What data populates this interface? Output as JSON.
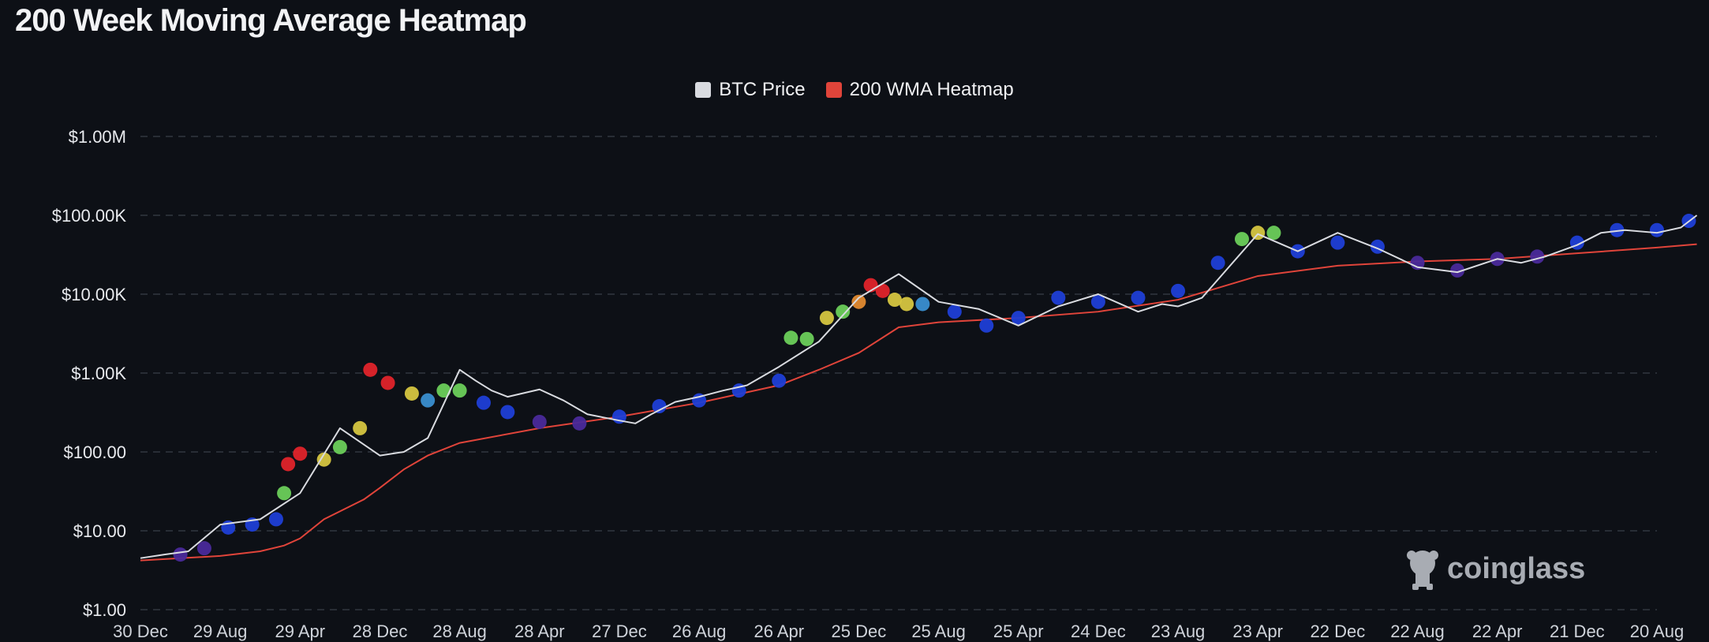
{
  "page": {
    "title": "200 Week Moving Average Heatmap"
  },
  "watermark": {
    "text": "coinglass",
    "icon": "coinglass-logo-icon"
  },
  "colors": {
    "background": "#0d1016",
    "btc_price": "#d9dbe0",
    "wma_line": "#e0443a",
    "legend_wma": "#e0443a",
    "legend_btc": "#d9dbe0",
    "heat_blue": "#1f3fd6",
    "heat_purple": "#4a2a9a",
    "heat_cyan": "#3a8fd0",
    "heat_green": "#6ccf5a",
    "heat_yellow": "#d6c640",
    "heat_orange": "#e08a30",
    "heat_red": "#e0242a"
  },
  "chart_data": {
    "type": "line",
    "title": "200 Week Moving Average Heatmap",
    "y_scale": "log",
    "ylim": [
      1,
      1000000
    ],
    "y_ticks": [
      "$1.00",
      "$10.00",
      "$100.00",
      "$1.00K",
      "$10.00K",
      "$100.00K",
      "$1.00M"
    ],
    "x_ticks": [
      "30 Dec",
      "29 Aug",
      "29 Apr",
      "28 Dec",
      "28 Aug",
      "28 Apr",
      "27 Dec",
      "26 Aug",
      "26 Apr",
      "25 Dec",
      "25 Aug",
      "25 Apr",
      "24 Dec",
      "23 Aug",
      "23 Apr",
      "22 Dec",
      "22 Aug",
      "22 Apr",
      "21 Dec",
      "20 Aug"
    ],
    "grid": true,
    "legend": [
      {
        "name": "BTC Price",
        "color": "#d9dbe0"
      },
      {
        "name": "200 WMA Heatmap",
        "color": "#e0443a"
      }
    ],
    "legend_position": "top-center",
    "series": [
      {
        "name": "BTC Price",
        "x": [
          0,
          0.3,
          0.6,
          1,
          1.5,
          2,
          2.5,
          3,
          3.3,
          3.6,
          4,
          4.2,
          4.4,
          4.6,
          5,
          5.3,
          5.6,
          6,
          6.2,
          6.4,
          6.7,
          7,
          7.3,
          7.6,
          8,
          8.5,
          9,
          9.5,
          10,
          10.5,
          11,
          11.5,
          12,
          12.5,
          12.8,
          13,
          13.3,
          13.6,
          14,
          14.5,
          15,
          15.5,
          16,
          16.5,
          17,
          17.3,
          17.6,
          18,
          18.3,
          18.6,
          19,
          19.3,
          19.5
        ],
        "y": [
          4.5,
          5,
          5.5,
          12,
          14,
          30,
          200,
          90,
          100,
          150,
          1100,
          800,
          600,
          500,
          620,
          450,
          300,
          250,
          230,
          300,
          430,
          500,
          600,
          700,
          1200,
          2500,
          9000,
          18000,
          8000,
          6500,
          4000,
          7000,
          10000,
          6000,
          7500,
          7000,
          9000,
          20000,
          58000,
          35000,
          60000,
          38000,
          22000,
          19000,
          28000,
          25000,
          30000,
          42000,
          60000,
          65000,
          60000,
          70000,
          100000
        ]
      },
      {
        "name": "200 WMA Heatmap",
        "x": [
          0,
          1,
          1.5,
          1.8,
          2,
          2.3,
          2.8,
          3,
          3.3,
          3.6,
          4,
          5,
          6,
          7,
          8,
          8.5,
          9,
          9.5,
          10,
          11,
          12,
          13,
          13.5,
          14,
          15,
          16,
          17,
          18,
          19,
          19.5
        ],
        "y": [
          4.2,
          4.8,
          5.5,
          6.5,
          8,
          14,
          25,
          35,
          60,
          90,
          130,
          200,
          280,
          420,
          700,
          1100,
          1800,
          3800,
          4400,
          5000,
          6000,
          8500,
          12000,
          17000,
          23000,
          26000,
          28000,
          33000,
          39000,
          43000
        ]
      }
    ],
    "heat_points": [
      {
        "x": 0.5,
        "y": 5,
        "band": "purple"
      },
      {
        "x": 0.8,
        "y": 6,
        "band": "purple"
      },
      {
        "x": 1.1,
        "y": 11,
        "band": "blue"
      },
      {
        "x": 1.4,
        "y": 12,
        "band": "blue"
      },
      {
        "x": 1.7,
        "y": 14,
        "band": "blue"
      },
      {
        "x": 1.8,
        "y": 30,
        "band": "green"
      },
      {
        "x": 1.85,
        "y": 70,
        "band": "red"
      },
      {
        "x": 2,
        "y": 95,
        "band": "red"
      },
      {
        "x": 2.3,
        "y": 80,
        "band": "yellow"
      },
      {
        "x": 2.5,
        "y": 115,
        "band": "green"
      },
      {
        "x": 2.75,
        "y": 200,
        "band": "yellow"
      },
      {
        "x": 2.88,
        "y": 1100,
        "band": "red"
      },
      {
        "x": 3.1,
        "y": 750,
        "band": "red"
      },
      {
        "x": 3.4,
        "y": 550,
        "band": "yellow"
      },
      {
        "x": 3.6,
        "y": 450,
        "band": "cyan"
      },
      {
        "x": 3.8,
        "y": 600,
        "band": "green"
      },
      {
        "x": 4,
        "y": 600,
        "band": "green"
      },
      {
        "x": 4.3,
        "y": 420,
        "band": "blue"
      },
      {
        "x": 4.6,
        "y": 320,
        "band": "blue"
      },
      {
        "x": 5,
        "y": 240,
        "band": "purple"
      },
      {
        "x": 5.5,
        "y": 230,
        "band": "purple"
      },
      {
        "x": 6,
        "y": 280,
        "band": "blue"
      },
      {
        "x": 6.5,
        "y": 380,
        "band": "blue"
      },
      {
        "x": 7,
        "y": 450,
        "band": "blue"
      },
      {
        "x": 7.5,
        "y": 600,
        "band": "blue"
      },
      {
        "x": 8,
        "y": 800,
        "band": "blue"
      },
      {
        "x": 8.15,
        "y": 2800,
        "band": "green"
      },
      {
        "x": 8.35,
        "y": 2700,
        "band": "green"
      },
      {
        "x": 8.6,
        "y": 5000,
        "band": "yellow"
      },
      {
        "x": 8.8,
        "y": 6000,
        "band": "green"
      },
      {
        "x": 9,
        "y": 8000,
        "band": "orange"
      },
      {
        "x": 9.15,
        "y": 13000,
        "band": "red"
      },
      {
        "x": 9.3,
        "y": 11000,
        "band": "red"
      },
      {
        "x": 9.45,
        "y": 8500,
        "band": "yellow"
      },
      {
        "x": 9.6,
        "y": 7500,
        "band": "yellow"
      },
      {
        "x": 9.8,
        "y": 7500,
        "band": "cyan"
      },
      {
        "x": 10.2,
        "y": 6000,
        "band": "blue"
      },
      {
        "x": 10.6,
        "y": 4000,
        "band": "blue"
      },
      {
        "x": 11,
        "y": 5000,
        "band": "blue"
      },
      {
        "x": 11.5,
        "y": 9000,
        "band": "blue"
      },
      {
        "x": 12,
        "y": 8000,
        "band": "blue"
      },
      {
        "x": 12.5,
        "y": 9000,
        "band": "blue"
      },
      {
        "x": 13,
        "y": 11000,
        "band": "blue"
      },
      {
        "x": 13.5,
        "y": 25000,
        "band": "blue"
      },
      {
        "x": 13.8,
        "y": 50000,
        "band": "green"
      },
      {
        "x": 14,
        "y": 60000,
        "band": "yellow"
      },
      {
        "x": 14.2,
        "y": 60000,
        "band": "green"
      },
      {
        "x": 14.5,
        "y": 35000,
        "band": "blue"
      },
      {
        "x": 15,
        "y": 45000,
        "band": "blue"
      },
      {
        "x": 15.5,
        "y": 40000,
        "band": "blue"
      },
      {
        "x": 16,
        "y": 25000,
        "band": "purple"
      },
      {
        "x": 16.5,
        "y": 20000,
        "band": "purple"
      },
      {
        "x": 17,
        "y": 28000,
        "band": "purple"
      },
      {
        "x": 17.5,
        "y": 30000,
        "band": "purple"
      },
      {
        "x": 18,
        "y": 45000,
        "band": "blue"
      },
      {
        "x": 18.5,
        "y": 65000,
        "band": "blue"
      },
      {
        "x": 19,
        "y": 65000,
        "band": "blue"
      },
      {
        "x": 19.4,
        "y": 85000,
        "band": "blue"
      }
    ]
  }
}
